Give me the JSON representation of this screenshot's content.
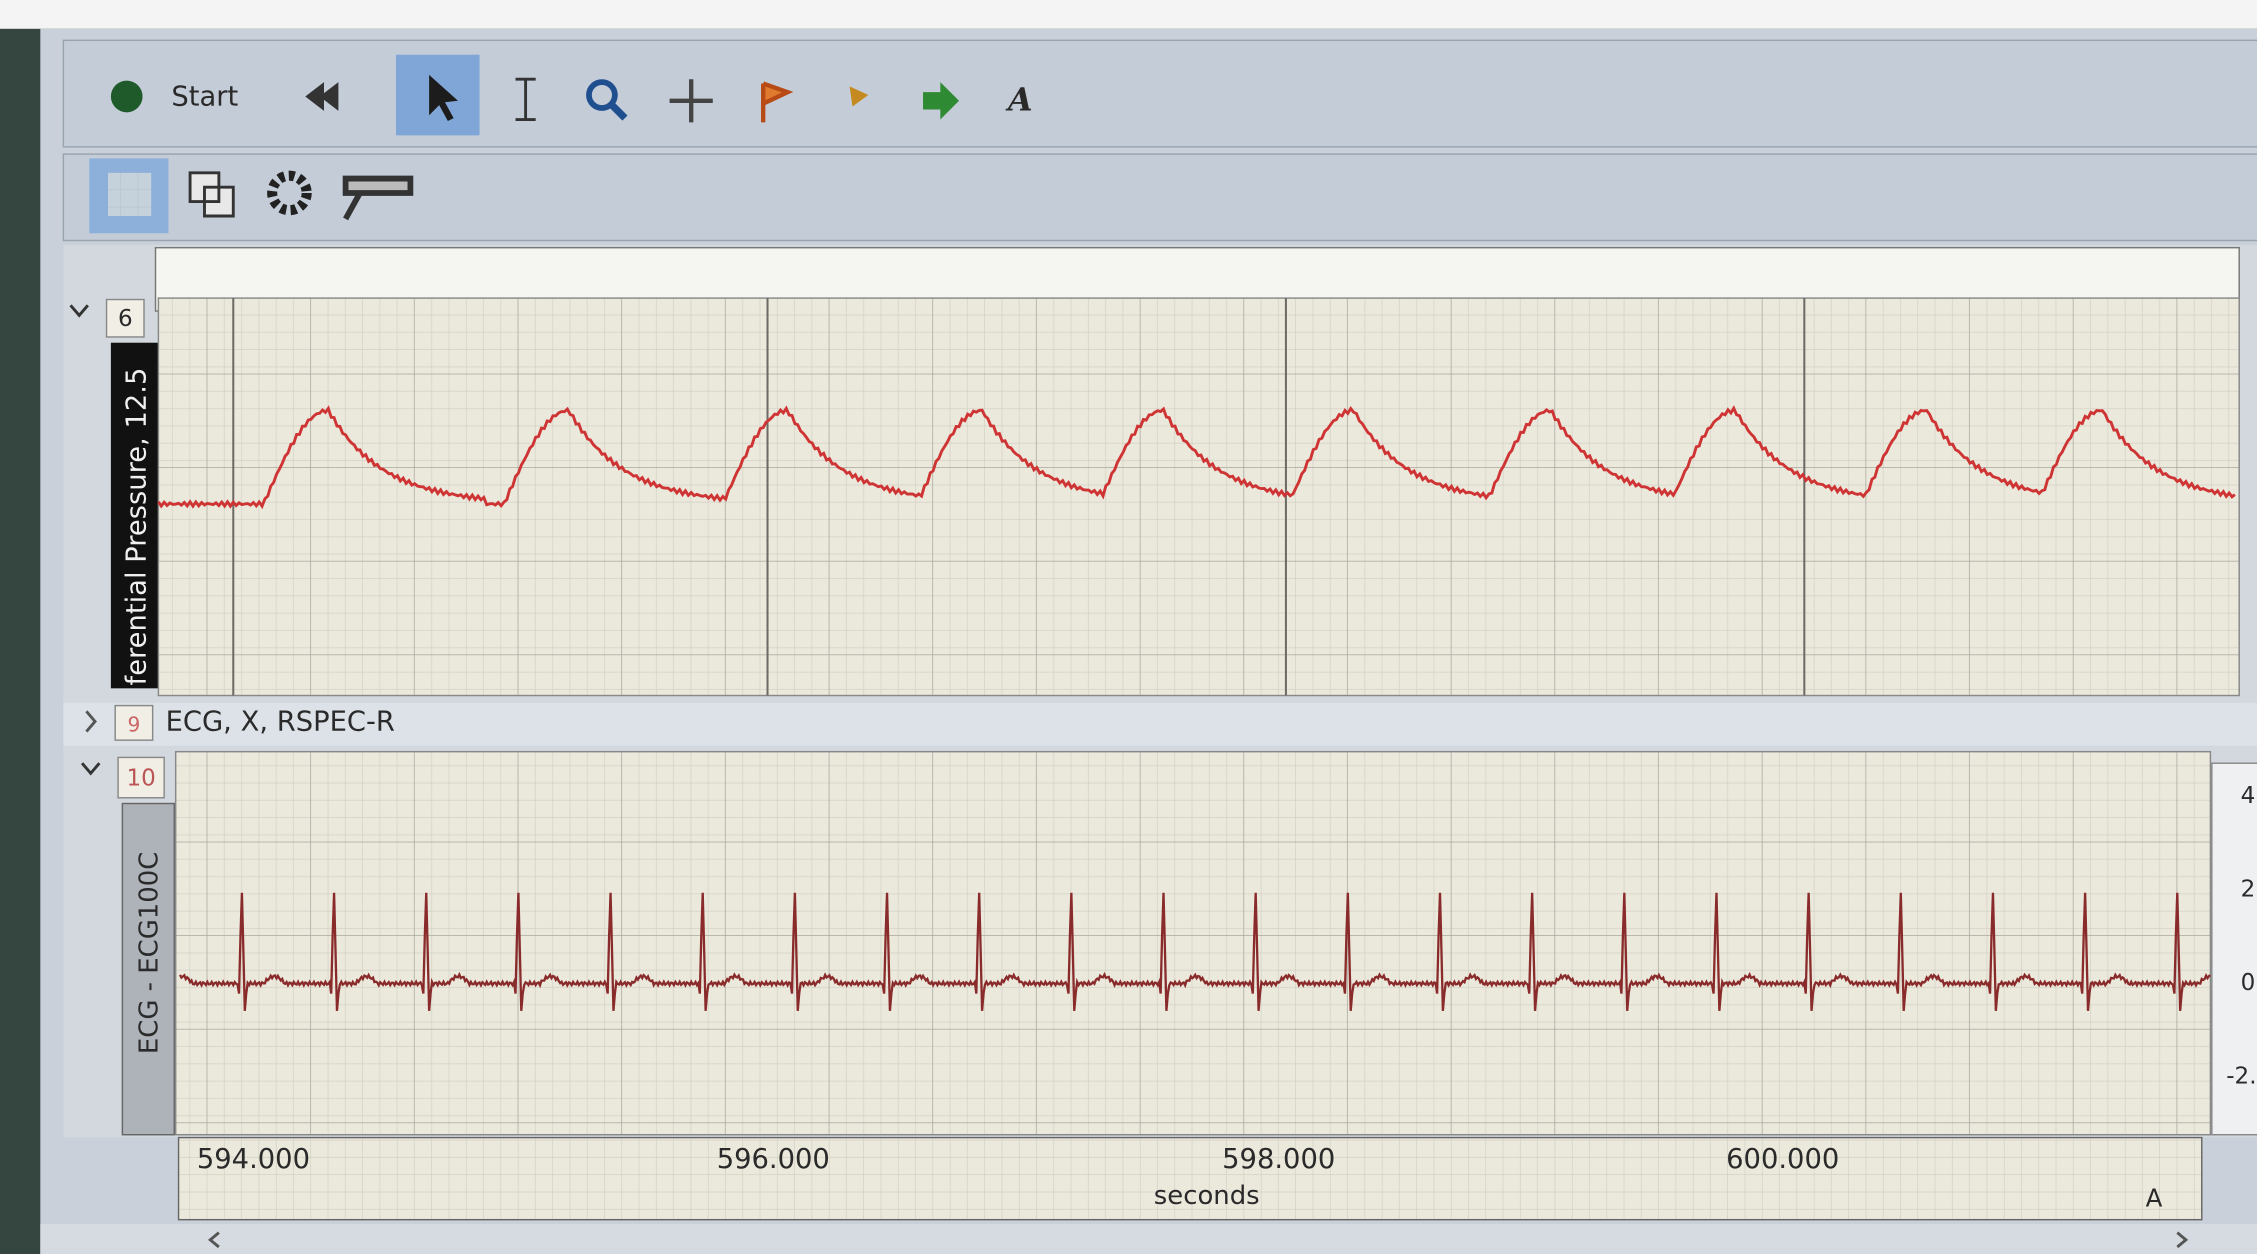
{
  "toolbar": {
    "start": "Start",
    "text_tool": "A"
  },
  "channels": [
    {
      "number": "6",
      "label": "ferential Pressure, 12.5"
    },
    {
      "number": "9",
      "label": "ECG, X, RSPEC-R"
    },
    {
      "number": "10",
      "label": "ECG - ECG100C",
      "scale": [
        "4",
        "2",
        "0",
        "-2."
      ]
    }
  ],
  "time_axis": {
    "ticks": [
      "594.000",
      "596.000",
      "598.000",
      "600.000"
    ],
    "unit": "seconds"
  },
  "corner": "A"
}
